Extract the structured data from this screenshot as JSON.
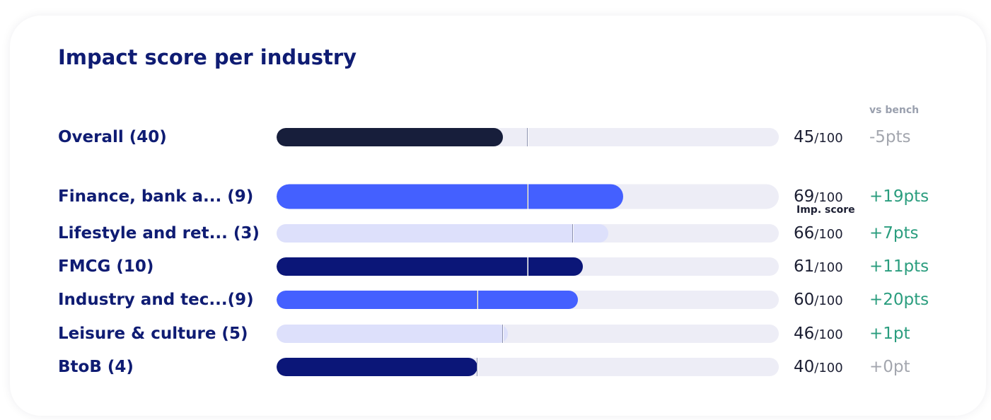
{
  "title": "Impact score per industry",
  "columns": {
    "score": "Imp. score",
    "bench": "vs bench"
  },
  "colors": {
    "overall": "#171e3b",
    "blue": "#4460ff",
    "lavender": "#dde0fb",
    "navy": "#0b1678",
    "track": "#ededf6",
    "positive": "#2a9d7e",
    "neutral": "#a3a6ae"
  },
  "chart_data": {
    "type": "bar",
    "orientation": "horizontal",
    "title": "Impact score per industry",
    "xlim": [
      0,
      100
    ],
    "categories": [
      "Overall (40)",
      "Finance, bank a... (9)",
      "Lifestyle and ret... (3)",
      "FMCG (10)",
      "Industry and tec...(9)",
      "Leisure & culture (5)",
      "BtoB (4)"
    ],
    "values": [
      45,
      69,
      66,
      61,
      60,
      46,
      40
    ],
    "benchmark": [
      50,
      50,
      59,
      50,
      40,
      45,
      40
    ],
    "rows": [
      {
        "label": "Overall (40)",
        "score": 45,
        "num": "45",
        "max": "/100",
        "delta": "-5pts",
        "bench": 50,
        "color": "#171e3b",
        "delta_color": "#a3a6ae"
      },
      {
        "label": "Finance, bank a... (9)",
        "score": 69,
        "num": "69",
        "max": "/100",
        "delta": "+19pts",
        "bench": 50,
        "color": "#4460ff",
        "delta_color": "#2a9d7e"
      },
      {
        "label": "Lifestyle and ret... (3)",
        "score": 66,
        "num": "66",
        "max": "/100",
        "delta": "+7pts",
        "bench": 59,
        "color": "#dde0fb",
        "delta_color": "#2a9d7e"
      },
      {
        "label": "FMCG (10)",
        "score": 61,
        "num": "61",
        "max": "/100",
        "delta": "+11pts",
        "bench": 50,
        "color": "#0b1678",
        "delta_color": "#2a9d7e"
      },
      {
        "label": "Industry and tec...(9)",
        "score": 60,
        "num": "60",
        "max": "/100",
        "delta": "+20pts",
        "bench": 40,
        "color": "#4460ff",
        "delta_color": "#2a9d7e"
      },
      {
        "label": "Leisure & culture (5)",
        "score": 46,
        "num": "46",
        "max": "/100",
        "delta": "+1pt",
        "bench": 45,
        "color": "#dde0fb",
        "delta_color": "#2a9d7e"
      },
      {
        "label": "BtoB (4)",
        "score": 40,
        "num": "40",
        "max": "/100",
        "delta": "+0pt",
        "bench": 40,
        "color": "#0b1678",
        "delta_color": "#a3a6ae"
      }
    ]
  }
}
